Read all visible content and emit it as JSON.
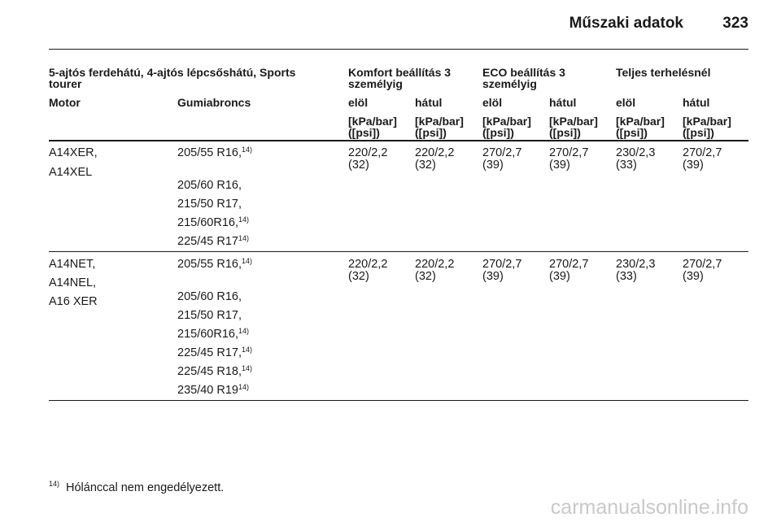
{
  "header": {
    "title": "Műszaki adatok",
    "page": "323"
  },
  "table": {
    "head": {
      "vehicle": "5-ajtós ferdehátú, 4-ajtós lépcsőshátú, Sports tourer",
      "groups": [
        "Komfort beállítás 3 személyig",
        "ECO beállítás 3 személyig",
        "Teljes terhelésnél"
      ],
      "motor": "Motor",
      "tyres": "Gumiabroncs",
      "axles": [
        "elöl",
        "hátul",
        "elöl",
        "hátul",
        "elöl",
        "hátul"
      ],
      "unit_line1": "[kPa/bar]",
      "unit_line2": "([psi])"
    },
    "rows": [
      {
        "motors": [
          "A14XER,",
          "A14XEL"
        ],
        "tyres": [
          {
            "text": "205/55 R16,",
            "note": "14)"
          },
          {
            "text": "205/60 R16,",
            "note": ""
          },
          {
            "text": "215/50 R17,",
            "note": ""
          },
          {
            "text": "215/60R16,",
            "note": "14)"
          },
          {
            "text": "225/45 R17",
            "note": "14)"
          }
        ],
        "values": [
          [
            "220/2,2",
            "(32)"
          ],
          [
            "220/2,2",
            "(32)"
          ],
          [
            "270/2,7",
            "(39)"
          ],
          [
            "270/2,7",
            "(39)"
          ],
          [
            "230/2,3",
            "(33)"
          ],
          [
            "270/2,7",
            "(39)"
          ]
        ]
      },
      {
        "motors": [
          "A14NET,",
          "A14NEL,",
          "A16 XER"
        ],
        "tyres": [
          {
            "text": "205/55 R16,",
            "note": "14)"
          },
          {
            "text": "205/60 R16,",
            "note": ""
          },
          {
            "text": "215/50 R17,",
            "note": ""
          },
          {
            "text": "215/60R16,",
            "note": "14)"
          },
          {
            "text": "225/45 R17,",
            "note": "14)"
          },
          {
            "text": "225/45 R18,",
            "note": "14)"
          },
          {
            "text": "235/40 R19",
            "note": "14)"
          }
        ],
        "values": [
          [
            "220/2,2",
            "(32)"
          ],
          [
            "220/2,2",
            "(32)"
          ],
          [
            "270/2,7",
            "(39)"
          ],
          [
            "270/2,7",
            "(39)"
          ],
          [
            "230/2,3",
            "(33)"
          ],
          [
            "270/2,7",
            "(39)"
          ]
        ]
      }
    ]
  },
  "footnote": {
    "number": "14)",
    "text": "Hólánccal nem engedélyezett."
  },
  "watermark": "carmanualsonline.info"
}
